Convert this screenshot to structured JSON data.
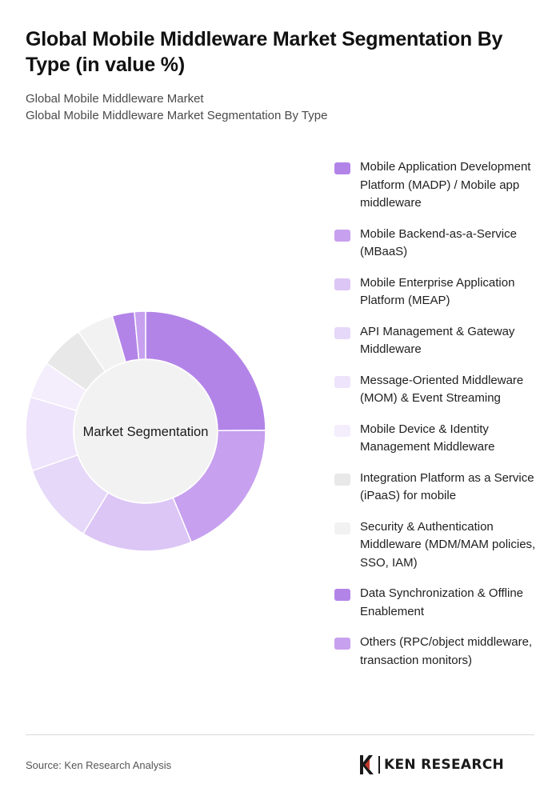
{
  "title": "Global Mobile Middleware Market Segmentation By Type (in value %)",
  "subtitle_lines": [
    "Global Mobile Middleware Market",
    "Global Mobile Middleware Market Segmentation By Type"
  ],
  "center_label": "Market Segmentation",
  "source": "Source: Ken Research Analysis",
  "brand": "KEN RESEARCH",
  "chart_data": {
    "type": "pie",
    "donut": true,
    "title": "Global Mobile Middleware Market Segmentation By Type (in value %)",
    "legend_position": "right",
    "categories": [
      "Mobile Application Development Platform (MADP) / Mobile app middleware",
      "Mobile Backend-as-a-Service (MBaaS)",
      "Mobile Enterprise Application Platform (MEAP)",
      "API Management & Gateway Middleware",
      "Message-Oriented Middleware (MOM) & Event Streaming",
      "Mobile Device & Identity Management Middleware",
      "Integration Platform as a Service (iPaaS) for mobile",
      "Security & Authentication Middleware (MDM/MAM policies, SSO, IAM)",
      "Data Synchronization & Offline Enablement",
      "Others (RPC/object middleware, transaction monitors)"
    ],
    "values": [
      25,
      19,
      15,
      11,
      10,
      5,
      6,
      5,
      3,
      1.5
    ],
    "colors": [
      "#b384e8",
      "#c7a0ef",
      "#dcc6f5",
      "#e6d8f8",
      "#eee4fb",
      "#f3edfc",
      "#e8e8e8",
      "#f2f2f2",
      "#b384e8",
      "#c7a0ef"
    ]
  }
}
